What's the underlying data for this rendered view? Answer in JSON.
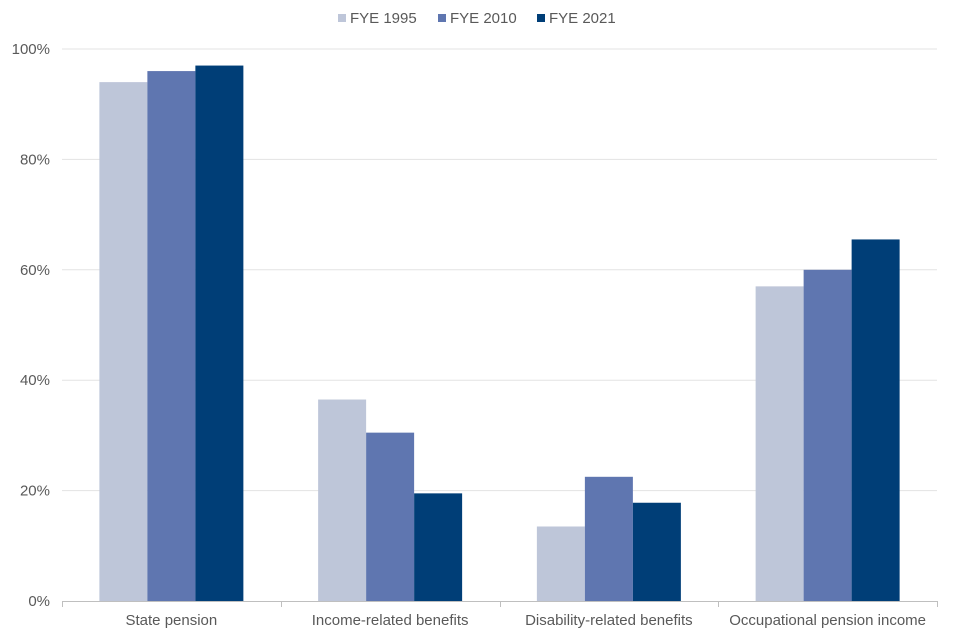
{
  "chart_data": {
    "type": "bar",
    "title": "",
    "xlabel": "",
    "ylabel": "",
    "categories": [
      "State pension",
      "Income-related benefits",
      "Disability-related benefits",
      "Occupational pension income"
    ],
    "series": [
      {
        "name": "FYE 1995",
        "color": "#bec6d9",
        "values": [
          94,
          36.5,
          13.5,
          57
        ]
      },
      {
        "name": "FYE 2010",
        "color": "#5f76b0",
        "values": [
          96,
          30.5,
          22.5,
          60
        ]
      },
      {
        "name": "FYE 2021",
        "color": "#003e77",
        "values": [
          97,
          19.5,
          17.8,
          65.5
        ]
      }
    ],
    "ylim": [
      0,
      100
    ],
    "yticks": [
      0,
      20,
      40,
      60,
      80,
      100
    ],
    "ytick_labels": [
      "0%",
      "20%",
      "40%",
      "60%",
      "80%",
      "100%"
    ],
    "grid": true,
    "legend_position": "top-center"
  }
}
